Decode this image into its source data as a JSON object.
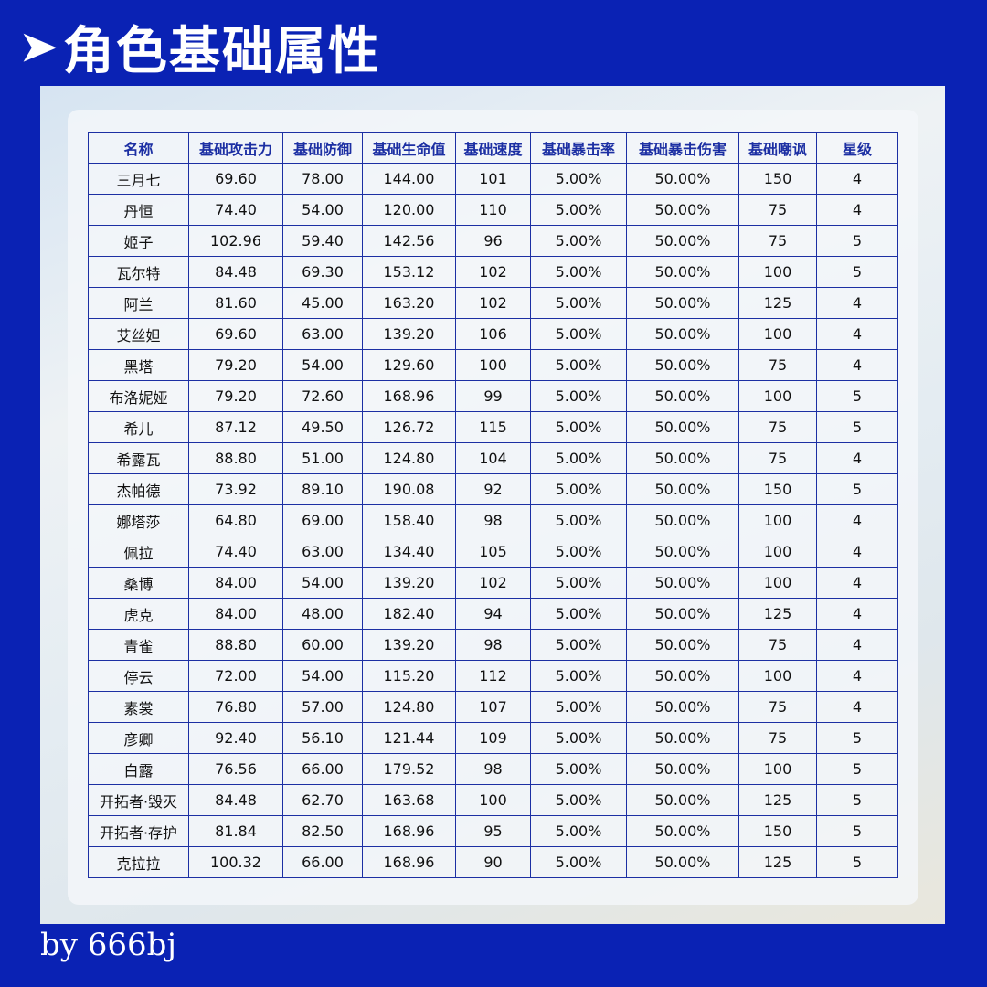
{
  "title": "角色基础属性",
  "title_arrow": "➤",
  "footer": "by 666bj",
  "colors": {
    "background": "#0a22b4",
    "table_border": "#1c2fa3",
    "header_text": "#1c2fa3"
  },
  "table": {
    "headers": [
      "名称",
      "基础攻击力",
      "基础防御",
      "基础生命值",
      "基础速度",
      "基础暴击率",
      "基础暴击伤害",
      "基础嘲讽",
      "星级"
    ],
    "rows": [
      [
        "三月七",
        "69.60",
        "78.00",
        "144.00",
        "101",
        "5.00%",
        "50.00%",
        "150",
        "4"
      ],
      [
        "丹恒",
        "74.40",
        "54.00",
        "120.00",
        "110",
        "5.00%",
        "50.00%",
        "75",
        "4"
      ],
      [
        "姬子",
        "102.96",
        "59.40",
        "142.56",
        "96",
        "5.00%",
        "50.00%",
        "75",
        "5"
      ],
      [
        "瓦尔特",
        "84.48",
        "69.30",
        "153.12",
        "102",
        "5.00%",
        "50.00%",
        "100",
        "5"
      ],
      [
        "阿兰",
        "81.60",
        "45.00",
        "163.20",
        "102",
        "5.00%",
        "50.00%",
        "125",
        "4"
      ],
      [
        "艾丝妲",
        "69.60",
        "63.00",
        "139.20",
        "106",
        "5.00%",
        "50.00%",
        "100",
        "4"
      ],
      [
        "黑塔",
        "79.20",
        "54.00",
        "129.60",
        "100",
        "5.00%",
        "50.00%",
        "75",
        "4"
      ],
      [
        "布洛妮娅",
        "79.20",
        "72.60",
        "168.96",
        "99",
        "5.00%",
        "50.00%",
        "100",
        "5"
      ],
      [
        "希儿",
        "87.12",
        "49.50",
        "126.72",
        "115",
        "5.00%",
        "50.00%",
        "75",
        "5"
      ],
      [
        "希露瓦",
        "88.80",
        "51.00",
        "124.80",
        "104",
        "5.00%",
        "50.00%",
        "75",
        "4"
      ],
      [
        "杰帕德",
        "73.92",
        "89.10",
        "190.08",
        "92",
        "5.00%",
        "50.00%",
        "150",
        "5"
      ],
      [
        "娜塔莎",
        "64.80",
        "69.00",
        "158.40",
        "98",
        "5.00%",
        "50.00%",
        "100",
        "4"
      ],
      [
        "佩拉",
        "74.40",
        "63.00",
        "134.40",
        "105",
        "5.00%",
        "50.00%",
        "100",
        "4"
      ],
      [
        "桑博",
        "84.00",
        "54.00",
        "139.20",
        "102",
        "5.00%",
        "50.00%",
        "100",
        "4"
      ],
      [
        "虎克",
        "84.00",
        "48.00",
        "182.40",
        "94",
        "5.00%",
        "50.00%",
        "125",
        "4"
      ],
      [
        "青雀",
        "88.80",
        "60.00",
        "139.20",
        "98",
        "5.00%",
        "50.00%",
        "75",
        "4"
      ],
      [
        "停云",
        "72.00",
        "54.00",
        "115.20",
        "112",
        "5.00%",
        "50.00%",
        "100",
        "4"
      ],
      [
        "素裳",
        "76.80",
        "57.00",
        "124.80",
        "107",
        "5.00%",
        "50.00%",
        "75",
        "4"
      ],
      [
        "彦卿",
        "92.40",
        "56.10",
        "121.44",
        "109",
        "5.00%",
        "50.00%",
        "75",
        "5"
      ],
      [
        "白露",
        "76.56",
        "66.00",
        "179.52",
        "98",
        "5.00%",
        "50.00%",
        "100",
        "5"
      ],
      [
        "开拓者·毁灭",
        "84.48",
        "62.70",
        "163.68",
        "100",
        "5.00%",
        "50.00%",
        "125",
        "5"
      ],
      [
        "开拓者·存护",
        "81.84",
        "82.50",
        "168.96",
        "95",
        "5.00%",
        "50.00%",
        "150",
        "5"
      ],
      [
        "克拉拉",
        "100.32",
        "66.00",
        "168.96",
        "90",
        "5.00%",
        "50.00%",
        "125",
        "5"
      ]
    ]
  }
}
